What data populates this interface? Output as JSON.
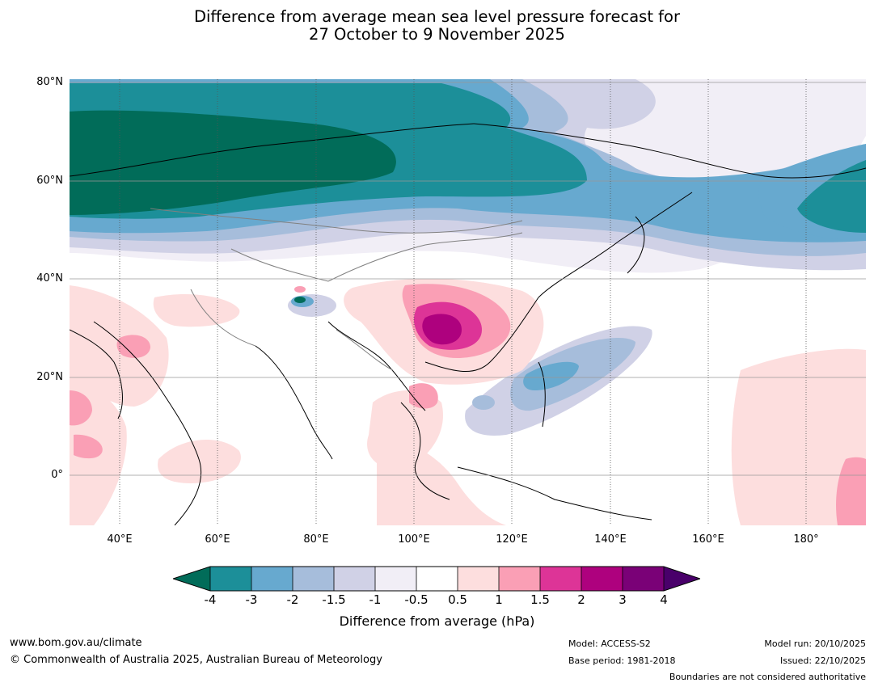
{
  "title_line1": "Difference from average mean sea level pressure forecast for",
  "title_line2": "27 October to 9 November 2025",
  "map": {
    "lat_labels": [
      "80°N",
      "60°N",
      "40°N",
      "20°N",
      "0°"
    ],
    "lon_labels": [
      "40°E",
      "60°E",
      "80°E",
      "100°E",
      "120°E",
      "140°E",
      "160°E",
      "180°"
    ],
    "extent": {
      "lon_min": 30,
      "lon_max": 192,
      "lat_min": -10,
      "lat_max": 81
    }
  },
  "colorbar": {
    "ticks": [
      "-4",
      "-3",
      "-2",
      "-1.5",
      "-1",
      "-0.5",
      "0.5",
      "1",
      "1.5",
      "2",
      "3",
      "4"
    ],
    "label": "Difference from average (hPa)",
    "colors": {
      "below_min": "#016c59",
      "n4_n3": "#1c8f99",
      "n3_n2": "#67a9cf",
      "n2_n15": "#a6bddb",
      "n15_n1": "#d0d1e6",
      "n1_n05": "#f1eef6",
      "n05_05": "#ffffff",
      "p05_1": "#fddede",
      "p1_15": "#fa9fb5",
      "p15_2": "#dd3497",
      "p2_3": "#ae017e",
      "p3_4": "#7a0177",
      "above_max": "#49006a"
    }
  },
  "footer": {
    "website": "www.bom.gov.au/climate",
    "copyright": "© Commonwealth of Australia 2025, Australian Bureau of Meteorology",
    "model": "Model: ACCESS-S2",
    "base_period": "Base period: 1981-2018",
    "model_run": "Model run: 20/10/2025",
    "issued": "Issued: 22/10/2025",
    "disclaimer": "Boundaries are not considered authoritative"
  }
}
